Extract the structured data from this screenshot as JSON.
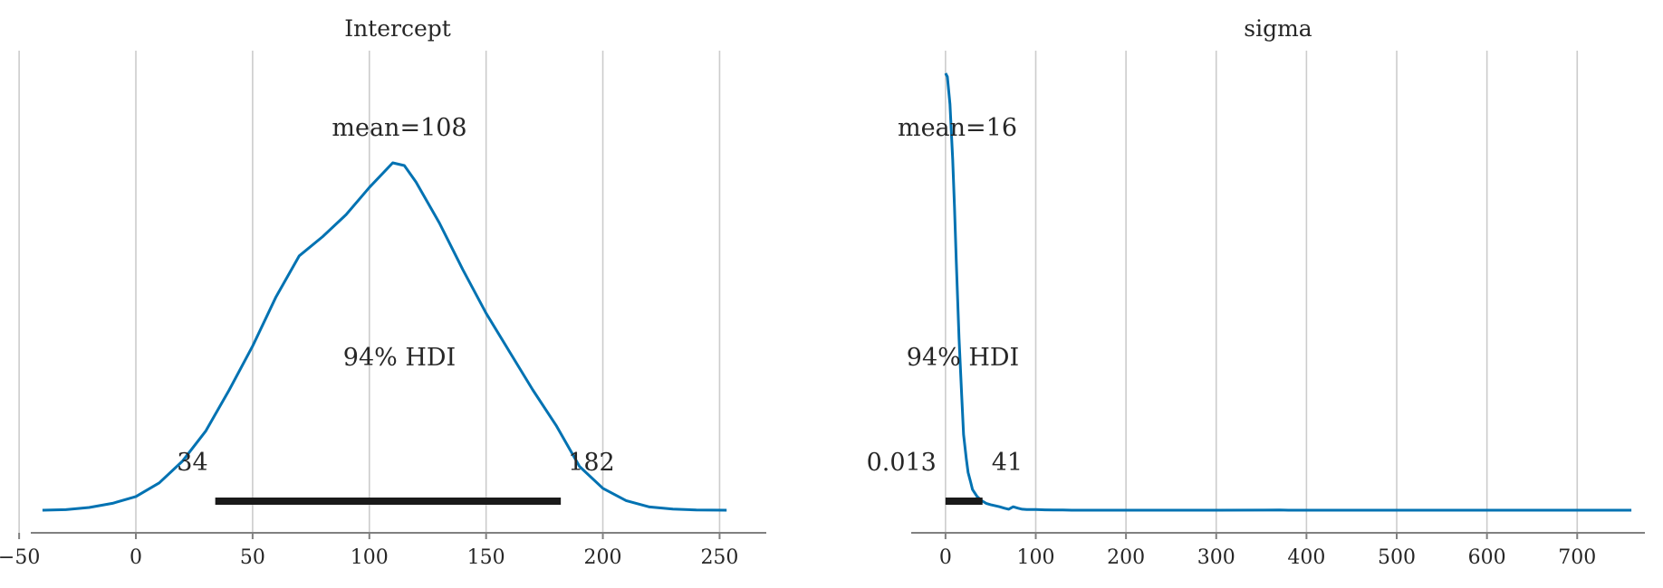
{
  "chart_data": [
    {
      "type": "line",
      "title": "Intercept",
      "xlabel": "",
      "ylabel": "",
      "xlim": [
        -45,
        270
      ],
      "xticks": [
        -50,
        0,
        50,
        100,
        150,
        200,
        250
      ],
      "xtick_labels": [
        "−50",
        "0",
        "50",
        "100",
        "150",
        "200",
        "250"
      ],
      "grid": "vertical",
      "color": "#0072b2",
      "kde": {
        "x": [
          -40,
          -30,
          -20,
          -10,
          0,
          10,
          20,
          30,
          40,
          50,
          60,
          70,
          80,
          90,
          100,
          110,
          115,
          120,
          130,
          140,
          150,
          160,
          170,
          180,
          190,
          200,
          210,
          220,
          230,
          240,
          253
        ],
        "y": [
          0.0,
          0.002,
          0.01,
          0.025,
          0.05,
          0.1,
          0.18,
          0.29,
          0.44,
          0.6,
          0.78,
          0.93,
          1.0,
          1.08,
          1.18,
          1.27,
          1.26,
          1.2,
          1.05,
          0.88,
          0.72,
          0.58,
          0.44,
          0.31,
          0.16,
          0.08,
          0.035,
          0.012,
          0.004,
          0.001,
          0.0
        ]
      },
      "mean_label": "mean=108",
      "hdi_label": "94% HDI",
      "hdi": [
        34,
        182
      ],
      "hdi_low_label": "34",
      "hdi_high_label": "182"
    },
    {
      "type": "line",
      "title": "sigma",
      "xlabel": "",
      "ylabel": "",
      "xlim": [
        -38,
        775
      ],
      "xticks": [
        0,
        100,
        200,
        300,
        400,
        500,
        600,
        700
      ],
      "xtick_labels": [
        "0",
        "100",
        "200",
        "300",
        "400",
        "500",
        "600",
        "700"
      ],
      "grid": "vertical",
      "color": "#0072b2",
      "kde": {
        "x": [
          0,
          2,
          5,
          8,
          10,
          12,
          15,
          18,
          20,
          23,
          25,
          28,
          30,
          35,
          40,
          45,
          50,
          55,
          60,
          65,
          70,
          75,
          80,
          85,
          90,
          100,
          110,
          120,
          130,
          140,
          200,
          300,
          370,
          380,
          500,
          600,
          700,
          760
        ],
        "y": [
          1.27,
          1.26,
          1.18,
          1.02,
          0.88,
          0.72,
          0.5,
          0.33,
          0.22,
          0.15,
          0.11,
          0.08,
          0.06,
          0.04,
          0.028,
          0.02,
          0.016,
          0.013,
          0.01,
          0.006,
          0.003,
          0.01,
          0.006,
          0.003,
          0.002,
          0.002,
          0.001,
          0.0005,
          0.0008,
          0.0,
          0.0,
          0.0,
          0.0005,
          0.0,
          0.0,
          0.0,
          0.0,
          0.0
        ]
      },
      "mean_label": "mean=16",
      "hdi_label": "94% HDI",
      "hdi": [
        0.013,
        41
      ],
      "hdi_low_label": "0.013",
      "hdi_high_label": "41"
    }
  ]
}
